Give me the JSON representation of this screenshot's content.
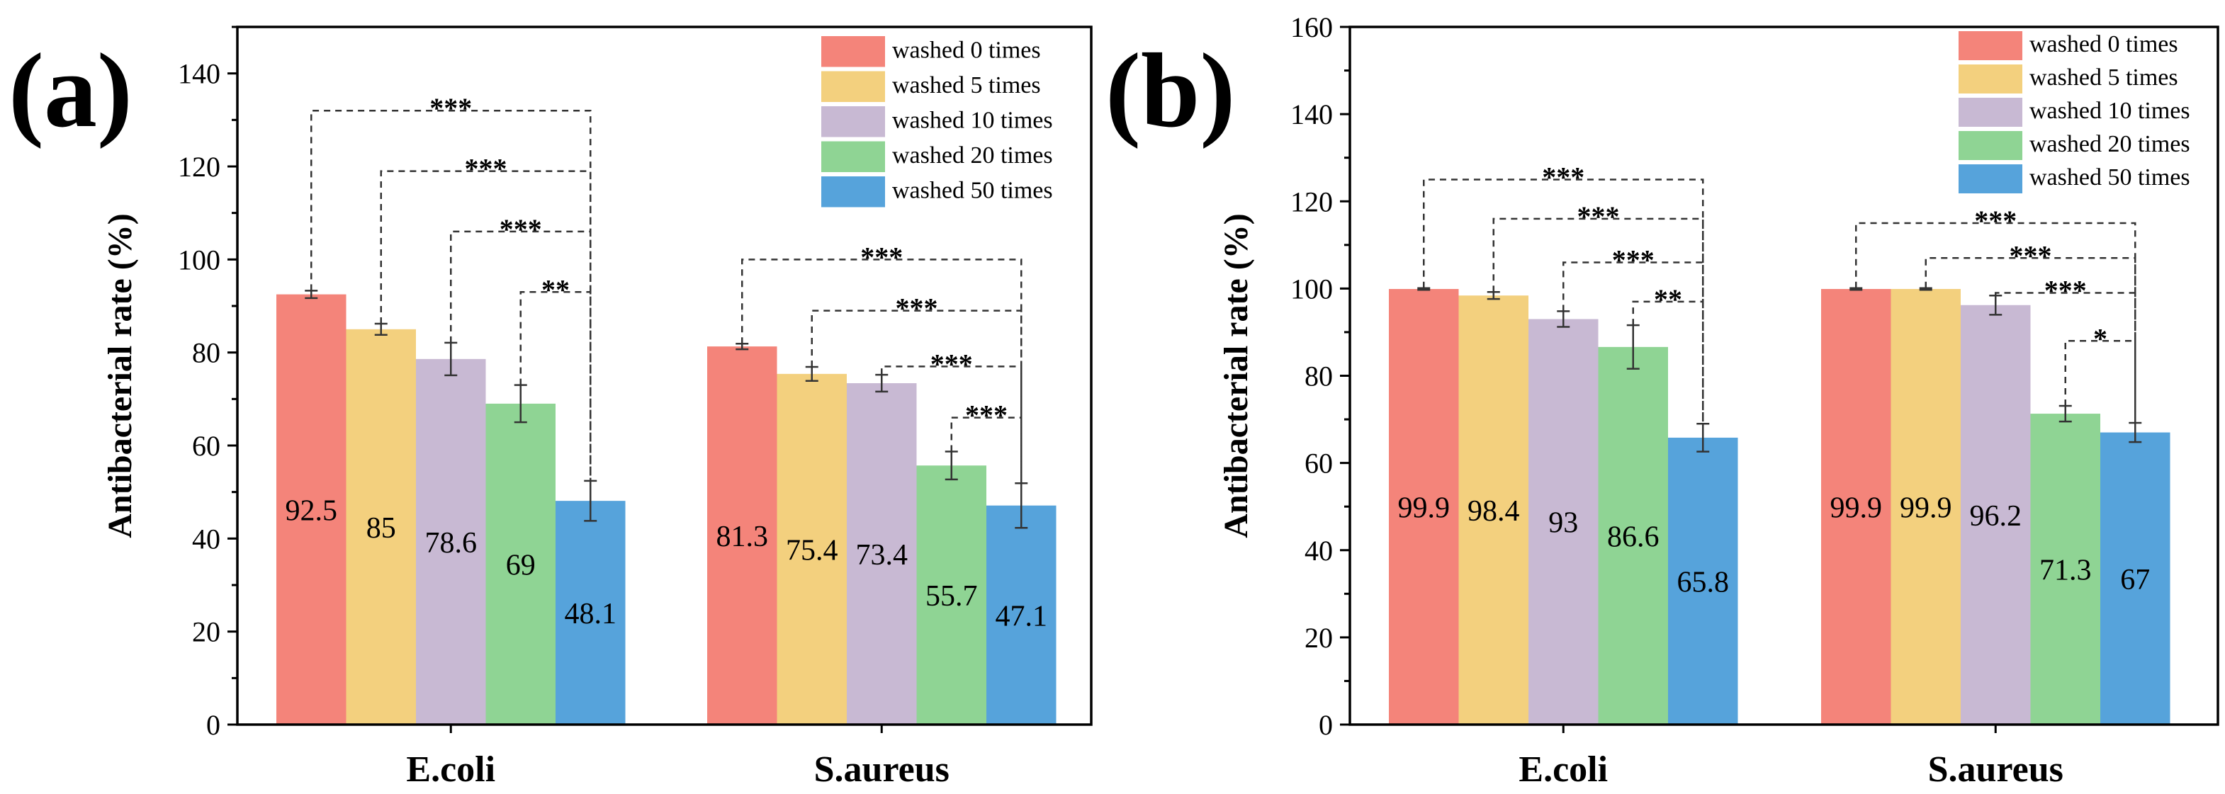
{
  "chart_data": [
    {
      "type": "bar",
      "panel_label": "(a)",
      "ylabel": "Antibacterial rate (%)",
      "xlabel": "",
      "ylim": [
        0,
        150
      ],
      "yticks": [
        0,
        20,
        40,
        60,
        80,
        100,
        120,
        140
      ],
      "categories": [
        "E.coli",
        "S.aureus"
      ],
      "series": [
        {
          "name": "washed 0 times",
          "color": "#f4847a",
          "values": [
            92.5,
            81.3
          ],
          "errors": [
            0.8,
            0.6
          ],
          "labels": [
            "92.5",
            "81.3"
          ]
        },
        {
          "name": "washed 5 times",
          "color": "#f3d07e",
          "values": [
            85.0,
            75.4
          ],
          "errors": [
            1.2,
            1.5
          ],
          "labels": [
            "85",
            "75.4"
          ]
        },
        {
          "name": "washed 10 times",
          "color": "#c8b9d3",
          "values": [
            78.6,
            73.4
          ],
          "errors": [
            3.5,
            1.8
          ],
          "labels": [
            "78.6",
            "73.4"
          ]
        },
        {
          "name": "washed 20 times",
          "color": "#8fd494",
          "values": [
            69.0,
            55.7
          ],
          "errors": [
            4.0,
            3.0
          ],
          "labels": [
            "69",
            "55.7"
          ]
        },
        {
          "name": "washed 50 times",
          "color": "#56a3db",
          "values": [
            48.1,
            47.1
          ],
          "errors": [
            4.3,
            4.8
          ],
          "labels": [
            "48.1",
            "47.1"
          ]
        }
      ],
      "significance": [
        {
          "category": 0,
          "from": 0,
          "to": 4,
          "level": 132,
          "label": "***"
        },
        {
          "category": 0,
          "from": 1,
          "to": 4,
          "level": 119,
          "label": "***"
        },
        {
          "category": 0,
          "from": 2,
          "to": 4,
          "level": 106,
          "label": "***"
        },
        {
          "category": 0,
          "from": 3,
          "to": 4,
          "level": 93,
          "label": "**"
        },
        {
          "category": 1,
          "from": 0,
          "to": 4,
          "level": 100,
          "label": "***"
        },
        {
          "category": 1,
          "from": 1,
          "to": 4,
          "level": 89,
          "label": "***"
        },
        {
          "category": 1,
          "from": 2,
          "to": 4,
          "level": 77,
          "label": "***"
        },
        {
          "category": 1,
          "from": 3,
          "to": 4,
          "level": 66,
          "label": "***"
        }
      ],
      "legend_position": "top-right"
    },
    {
      "type": "bar",
      "panel_label": "(b)",
      "ylabel": "Antibacterial rate (%)",
      "xlabel": "",
      "ylim": [
        0,
        160
      ],
      "yticks": [
        0,
        20,
        40,
        60,
        80,
        100,
        120,
        140,
        160
      ],
      "categories": [
        "E.coli",
        "S.aureus"
      ],
      "series": [
        {
          "name": "washed 0 times",
          "color": "#f4847a",
          "values": [
            99.9,
            99.9
          ],
          "errors": [
            0.2,
            0.2
          ],
          "labels": [
            "99.9",
            "99.9"
          ]
        },
        {
          "name": "washed 5 times",
          "color": "#f3d07e",
          "values": [
            98.4,
            99.9
          ],
          "errors": [
            0.8,
            0.2
          ],
          "labels": [
            "98.4",
            "99.9"
          ]
        },
        {
          "name": "washed 10 times",
          "color": "#c8b9d3",
          "values": [
            93.0,
            96.2
          ],
          "errors": [
            1.8,
            2.2
          ],
          "labels": [
            "93",
            "96.2"
          ]
        },
        {
          "name": "washed 20 times",
          "color": "#8fd494",
          "values": [
            86.6,
            71.3
          ],
          "errors": [
            5.0,
            1.8
          ],
          "labels": [
            "86.6",
            "71.3"
          ]
        },
        {
          "name": "washed 50 times",
          "color": "#56a3db",
          "values": [
            65.8,
            67.0
          ],
          "errors": [
            3.2,
            2.2
          ],
          "labels": [
            "65.8",
            "67"
          ]
        }
      ],
      "significance": [
        {
          "category": 0,
          "from": 0,
          "to": 4,
          "level": 125,
          "label": "***"
        },
        {
          "category": 0,
          "from": 1,
          "to": 4,
          "level": 116,
          "label": "***"
        },
        {
          "category": 0,
          "from": 2,
          "to": 4,
          "level": 106,
          "label": "***"
        },
        {
          "category": 0,
          "from": 3,
          "to": 4,
          "level": 97,
          "label": "**"
        },
        {
          "category": 1,
          "from": 0,
          "to": 4,
          "level": 115,
          "label": "***"
        },
        {
          "category": 1,
          "from": 1,
          "to": 4,
          "level": 107,
          "label": "***"
        },
        {
          "category": 1,
          "from": 2,
          "to": 4,
          "level": 99,
          "label": "***"
        },
        {
          "category": 1,
          "from": 3,
          "to": 4,
          "level": 88,
          "label": "*"
        }
      ],
      "legend_position": "top-right"
    }
  ]
}
